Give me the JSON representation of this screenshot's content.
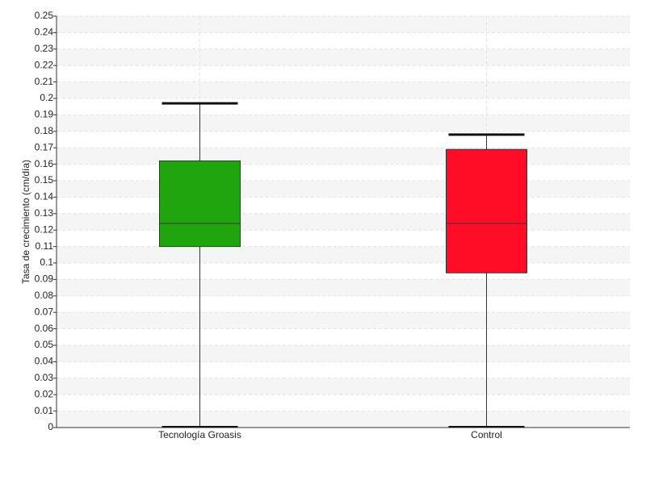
{
  "chart_data": {
    "type": "box",
    "y_label": "Tasa de crecimiento (cm/día)",
    "categories": [
      "Tecnología Groasis",
      "Control"
    ],
    "boxes": [
      {
        "min": 0,
        "q1": 0.11,
        "median": 0.124,
        "q3": 0.162,
        "max": 0.197,
        "color": "#21a50f"
      },
      {
        "min": 0,
        "q1": 0.094,
        "median": 0.124,
        "q3": 0.169,
        "max": 0.178,
        "color": "#ff0d26"
      }
    ],
    "ylim": [
      0,
      0.25
    ],
    "yticks": [
      0,
      0.01,
      0.02,
      0.03,
      0.04,
      0.05,
      0.06,
      0.07,
      0.08,
      0.09,
      0.1,
      0.11,
      0.12,
      0.13,
      0.14,
      0.15,
      0.16,
      0.17,
      0.18,
      0.19,
      0.2,
      0.21,
      0.22,
      0.23,
      0.24,
      0.25
    ],
    "grid": true
  }
}
